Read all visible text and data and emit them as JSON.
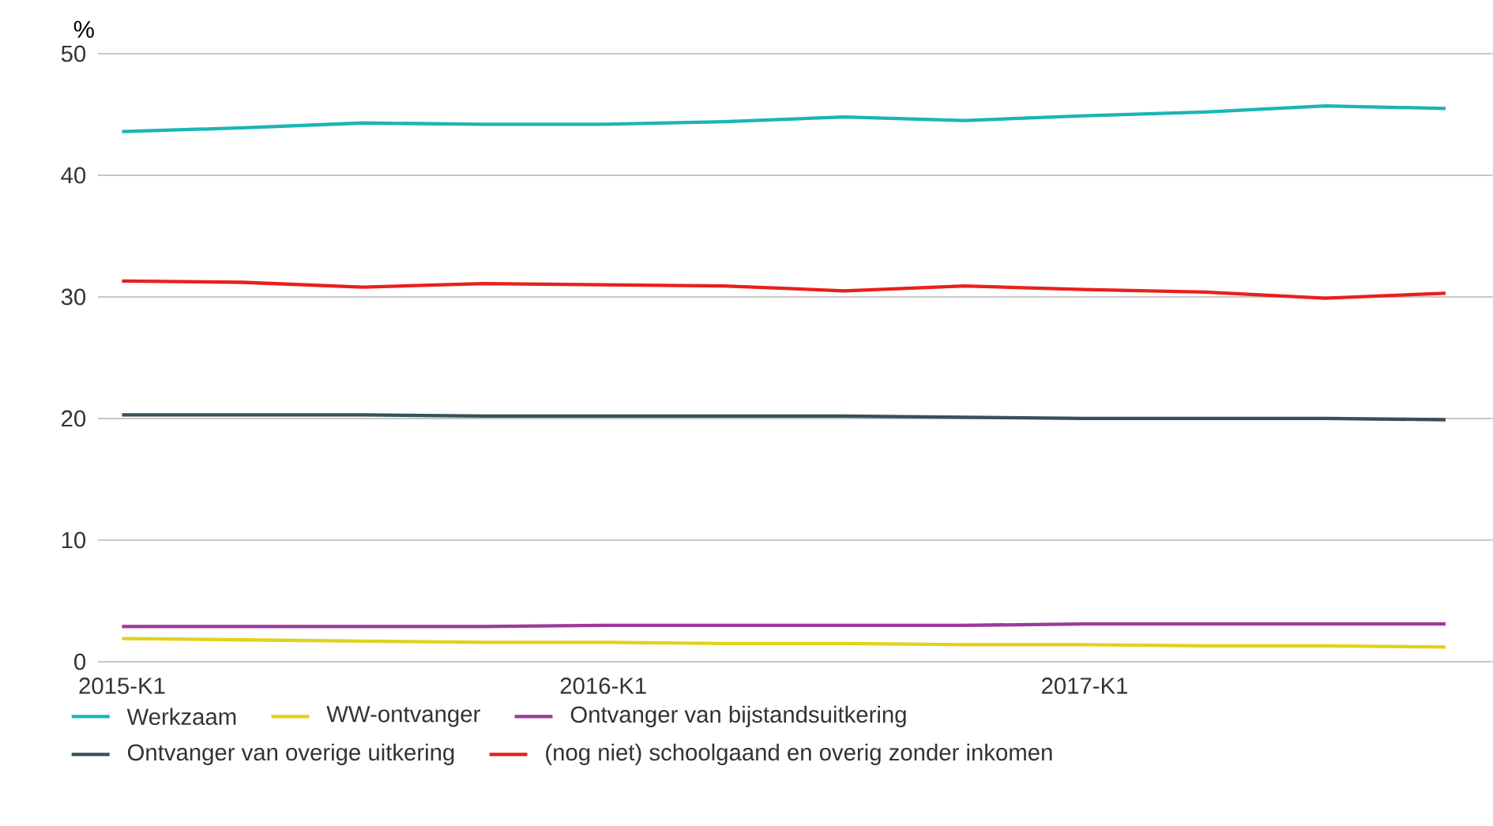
{
  "chart_data": {
    "type": "line",
    "ylabel": "%",
    "categories": [
      "2015-K1",
      null,
      null,
      null,
      "2016-K1",
      null,
      null,
      null,
      "2017-K1",
      null,
      null,
      null
    ],
    "series": [
      {
        "name": "Werkzaam",
        "color": "#1bb5b5",
        "values": [
          43.6,
          43.9,
          44.3,
          44.2,
          44.2,
          44.4,
          44.8,
          44.5,
          44.9,
          45.2,
          45.7,
          45.5
        ]
      },
      {
        "name": "WW-ontvanger",
        "color": "#e0d21c",
        "values": [
          1.9,
          1.8,
          1.7,
          1.6,
          1.6,
          1.5,
          1.5,
          1.4,
          1.4,
          1.3,
          1.3,
          1.2
        ]
      },
      {
        "name": "Ontvanger van bijstandsuitkering",
        "color": "#9c3a98",
        "values": [
          2.9,
          2.9,
          2.9,
          2.9,
          3.0,
          3.0,
          3.0,
          3.0,
          3.1,
          3.1,
          3.1,
          3.1
        ]
      },
      {
        "name": "Ontvanger van overige uitkering",
        "color": "#37505c",
        "values": [
          20.3,
          20.3,
          20.3,
          20.2,
          20.2,
          20.2,
          20.2,
          20.1,
          20.0,
          20.0,
          20.0,
          19.9
        ]
      },
      {
        "name": "(nog niet) schoolgaand en overig zonder inkomen",
        "color": "#e8201c",
        "values": [
          31.3,
          31.2,
          30.8,
          31.1,
          31.0,
          30.9,
          30.5,
          30.9,
          30.6,
          30.4,
          29.9,
          30.3
        ]
      }
    ],
    "ylim": [
      0,
      50
    ],
    "yticks": [
      0,
      10,
      20,
      30,
      40,
      50
    ],
    "grid": "y",
    "legend": "bottom",
    "marker": "none",
    "line_style": "solid"
  }
}
